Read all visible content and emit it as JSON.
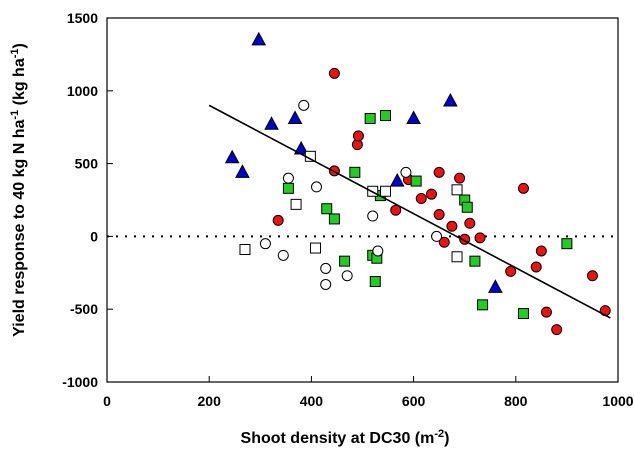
{
  "chart_data": {
    "type": "scatter",
    "title": "",
    "xlabel": "Shoot density at DC30 (m",
    "xlabel_sup": "-2",
    "xlabel_end": ")",
    "ylabel": "Yield response to 40 kg N ha",
    "ylabel_sup": "-1",
    "ylabel_end": " (kg ha",
    "ylabel_sup2": "-1",
    "ylabel_end2": ")",
    "xlim": [
      0,
      1000
    ],
    "ylim": [
      -1000,
      1500
    ],
    "x_ticks": [
      0,
      200,
      400,
      600,
      800,
      1000
    ],
    "y_ticks": [
      -1000,
      -500,
      0,
      500,
      1000,
      1500
    ],
    "grid": false,
    "legend": "none",
    "reference_line": {
      "y": 0,
      "style": "dotted"
    },
    "trendline": {
      "x": [
        200,
        985
      ],
      "y": [
        900,
        -560
      ]
    },
    "colors": {
      "triangles": "#0000cc",
      "red_circles": "#ee1111",
      "green_squares": "#22cc22",
      "open_markers_fill": "#ffffff",
      "stroke": "#000000"
    },
    "series": [
      {
        "marker": "triangle",
        "fill": "#0000cc",
        "points": [
          [
            245,
            540
          ],
          [
            265,
            440
          ],
          [
            297,
            1350
          ],
          [
            322,
            770
          ],
          [
            368,
            810
          ],
          [
            380,
            600
          ],
          [
            568,
            380
          ],
          [
            600,
            810
          ],
          [
            672,
            930
          ],
          [
            760,
            -350
          ]
        ]
      },
      {
        "marker": "circle",
        "fill": "#ee1111",
        "points": [
          [
            335,
            110
          ],
          [
            445,
            1120
          ],
          [
            445,
            450
          ],
          [
            490,
            630
          ],
          [
            492,
            690
          ],
          [
            565,
            180
          ],
          [
            590,
            390
          ],
          [
            615,
            260
          ],
          [
            635,
            290
          ],
          [
            650,
            440
          ],
          [
            650,
            150
          ],
          [
            660,
            -40
          ],
          [
            675,
            70
          ],
          [
            690,
            400
          ],
          [
            700,
            -20
          ],
          [
            710,
            90
          ],
          [
            730,
            -10
          ],
          [
            790,
            -240
          ],
          [
            815,
            330
          ],
          [
            840,
            -210
          ],
          [
            850,
            -100
          ],
          [
            860,
            -520
          ],
          [
            880,
            -640
          ],
          [
            950,
            -270
          ],
          [
            975,
            -510
          ]
        ]
      },
      {
        "marker": "square",
        "fill": "#22cc22",
        "points": [
          [
            355,
            330
          ],
          [
            430,
            190
          ],
          [
            445,
            120
          ],
          [
            465,
            -170
          ],
          [
            485,
            440
          ],
          [
            515,
            810
          ],
          [
            520,
            -130
          ],
          [
            525,
            -310
          ],
          [
            528,
            -150
          ],
          [
            535,
            280
          ],
          [
            545,
            830
          ],
          [
            605,
            380
          ],
          [
            700,
            250
          ],
          [
            705,
            200
          ],
          [
            720,
            -170
          ],
          [
            735,
            -470
          ],
          [
            815,
            -530
          ],
          [
            900,
            -50
          ]
        ]
      },
      {
        "marker": "square",
        "fill": "#ffffff",
        "points": [
          [
            270,
            -90
          ],
          [
            370,
            220
          ],
          [
            398,
            550
          ],
          [
            408,
            -80
          ],
          [
            520,
            310
          ],
          [
            545,
            310
          ],
          [
            685,
            320
          ],
          [
            685,
            -140
          ]
        ]
      },
      {
        "marker": "circle",
        "fill": "#ffffff",
        "points": [
          [
            345,
            -130
          ],
          [
            355,
            400
          ],
          [
            385,
            900
          ],
          [
            310,
            -50
          ],
          [
            410,
            340
          ],
          [
            428,
            -330
          ],
          [
            428,
            -220
          ],
          [
            470,
            -270
          ],
          [
            520,
            140
          ],
          [
            530,
            -100
          ],
          [
            585,
            440
          ],
          [
            645,
            0
          ]
        ]
      }
    ]
  }
}
